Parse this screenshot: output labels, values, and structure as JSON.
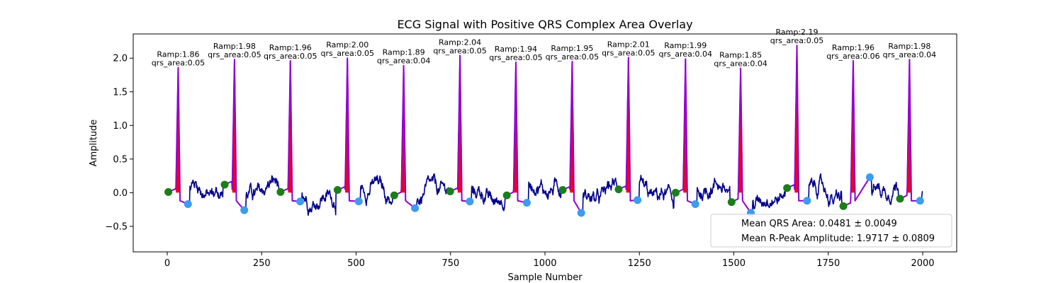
{
  "chart_data": {
    "type": "line",
    "title": "ECG Signal with Positive QRS Complex Area Overlay",
    "xlabel": "Sample Number",
    "ylabel": "Amplitude",
    "xlim": [
      -90,
      2090
    ],
    "ylim": [
      -0.88,
      2.36
    ],
    "xticks": [
      0,
      250,
      500,
      750,
      1000,
      1250,
      1500,
      1750,
      2000
    ],
    "yticks": [
      -0.5,
      0.0,
      0.5,
      1.0,
      1.5,
      2.0
    ],
    "ytick_labels": [
      "−0.5",
      "0.0",
      "0.5",
      "1.0",
      "1.5",
      "2.0"
    ],
    "grid": false,
    "colors": {
      "signal": "#00008b",
      "qrs_segment": "#9400d3",
      "qrs_area": "#ff0000",
      "onset_marker": "#1a7f1a",
      "offset_marker": "#3b9cf0"
    },
    "beats": [
      {
        "r_x": 29,
        "ramp": 1.86,
        "qrs_area": 0.05,
        "ramp_label": "Ramp:1.86",
        "area_label": "qrs_area:0.05",
        "onset": [
          3,
          0.01
        ],
        "offset": [
          55,
          -0.17
        ]
      },
      {
        "r_x": 178,
        "ramp": 1.98,
        "qrs_area": 0.05,
        "ramp_label": "Ramp:1.98",
        "area_label": "qrs_area:0.05",
        "onset": [
          152,
          0.12
        ],
        "offset": [
          204,
          -0.26
        ]
      },
      {
        "r_x": 326,
        "ramp": 1.96,
        "qrs_area": 0.05,
        "ramp_label": "Ramp:1.96",
        "area_label": "qrs_area:0.05",
        "onset": [
          300,
          0.01
        ],
        "offset": [
          352,
          -0.13
        ]
      },
      {
        "r_x": 477,
        "ramp": 2.0,
        "qrs_area": 0.05,
        "ramp_label": "Ramp:2.00",
        "area_label": "qrs_area:0.05",
        "onset": [
          451,
          0.04
        ],
        "offset": [
          507,
          -0.13
        ]
      },
      {
        "r_x": 626,
        "ramp": 1.89,
        "qrs_area": 0.04,
        "ramp_label": "Ramp:1.89",
        "area_label": "qrs_area:0.04",
        "onset": [
          601,
          -0.04
        ],
        "offset": [
          656,
          -0.23
        ]
      },
      {
        "r_x": 775,
        "ramp": 2.04,
        "qrs_area": 0.05,
        "ramp_label": "Ramp:2.04",
        "area_label": "qrs_area:0.05",
        "onset": [
          749,
          0.02
        ],
        "offset": [
          801,
          -0.13
        ]
      },
      {
        "r_x": 923,
        "ramp": 1.94,
        "qrs_area": 0.05,
        "ramp_label": "Ramp:1.94",
        "area_label": "qrs_area:0.05",
        "onset": [
          899,
          -0.04
        ],
        "offset": [
          952,
          -0.15
        ]
      },
      {
        "r_x": 1072,
        "ramp": 1.95,
        "qrs_area": 0.05,
        "ramp_label": "Ramp:1.95",
        "area_label": "qrs_area:0.05",
        "onset": [
          1047,
          0.04
        ],
        "offset": [
          1096,
          -0.3
        ]
      },
      {
        "r_x": 1221,
        "ramp": 2.01,
        "qrs_area": 0.05,
        "ramp_label": "Ramp:2.01",
        "area_label": "qrs_area:0.05",
        "onset": [
          1195,
          0.05
        ],
        "offset": [
          1245,
          -0.11
        ]
      },
      {
        "r_x": 1372,
        "ramp": 1.99,
        "qrs_area": 0.04,
        "ramp_label": "Ramp:1.99",
        "area_label": "qrs_area:0.04",
        "onset": [
          1346,
          0.0
        ],
        "offset": [
          1398,
          -0.17
        ]
      },
      {
        "r_x": 1518,
        "ramp": 1.85,
        "qrs_area": 0.04,
        "ramp_label": "Ramp:1.85",
        "area_label": "qrs_area:0.04",
        "onset": [
          1494,
          -0.14
        ],
        "offset": [
          1545,
          -0.3
        ]
      },
      {
        "r_x": 1667,
        "ramp": 2.19,
        "qrs_area": 0.05,
        "ramp_label": "Ramp:2.19",
        "area_label": "qrs_area:0.05",
        "onset": [
          1641,
          0.07
        ],
        "offset": [
          1694,
          -0.12
        ]
      },
      {
        "r_x": 1816,
        "ramp": 1.96,
        "qrs_area": 0.06,
        "ramp_label": "Ramp:1.96",
        "area_label": "qrs_area:0.06",
        "onset": [
          1790,
          -0.2
        ],
        "offset": [
          1860,
          0.23
        ]
      },
      {
        "r_x": 1965,
        "ramp": 1.98,
        "qrs_area": 0.04,
        "ramp_label": "Ramp:1.98",
        "area_label": "qrs_area:0.04",
        "onset": [
          1940,
          -0.09
        ],
        "offset": [
          1993,
          -0.12
        ]
      }
    ],
    "legend": {
      "placement": "lower right",
      "entries": [
        "Mean QRS Area: 0.0481 ± 0.0049",
        "Mean R-Peak Amplitude: 1.9717 ± 0.0809"
      ]
    }
  }
}
